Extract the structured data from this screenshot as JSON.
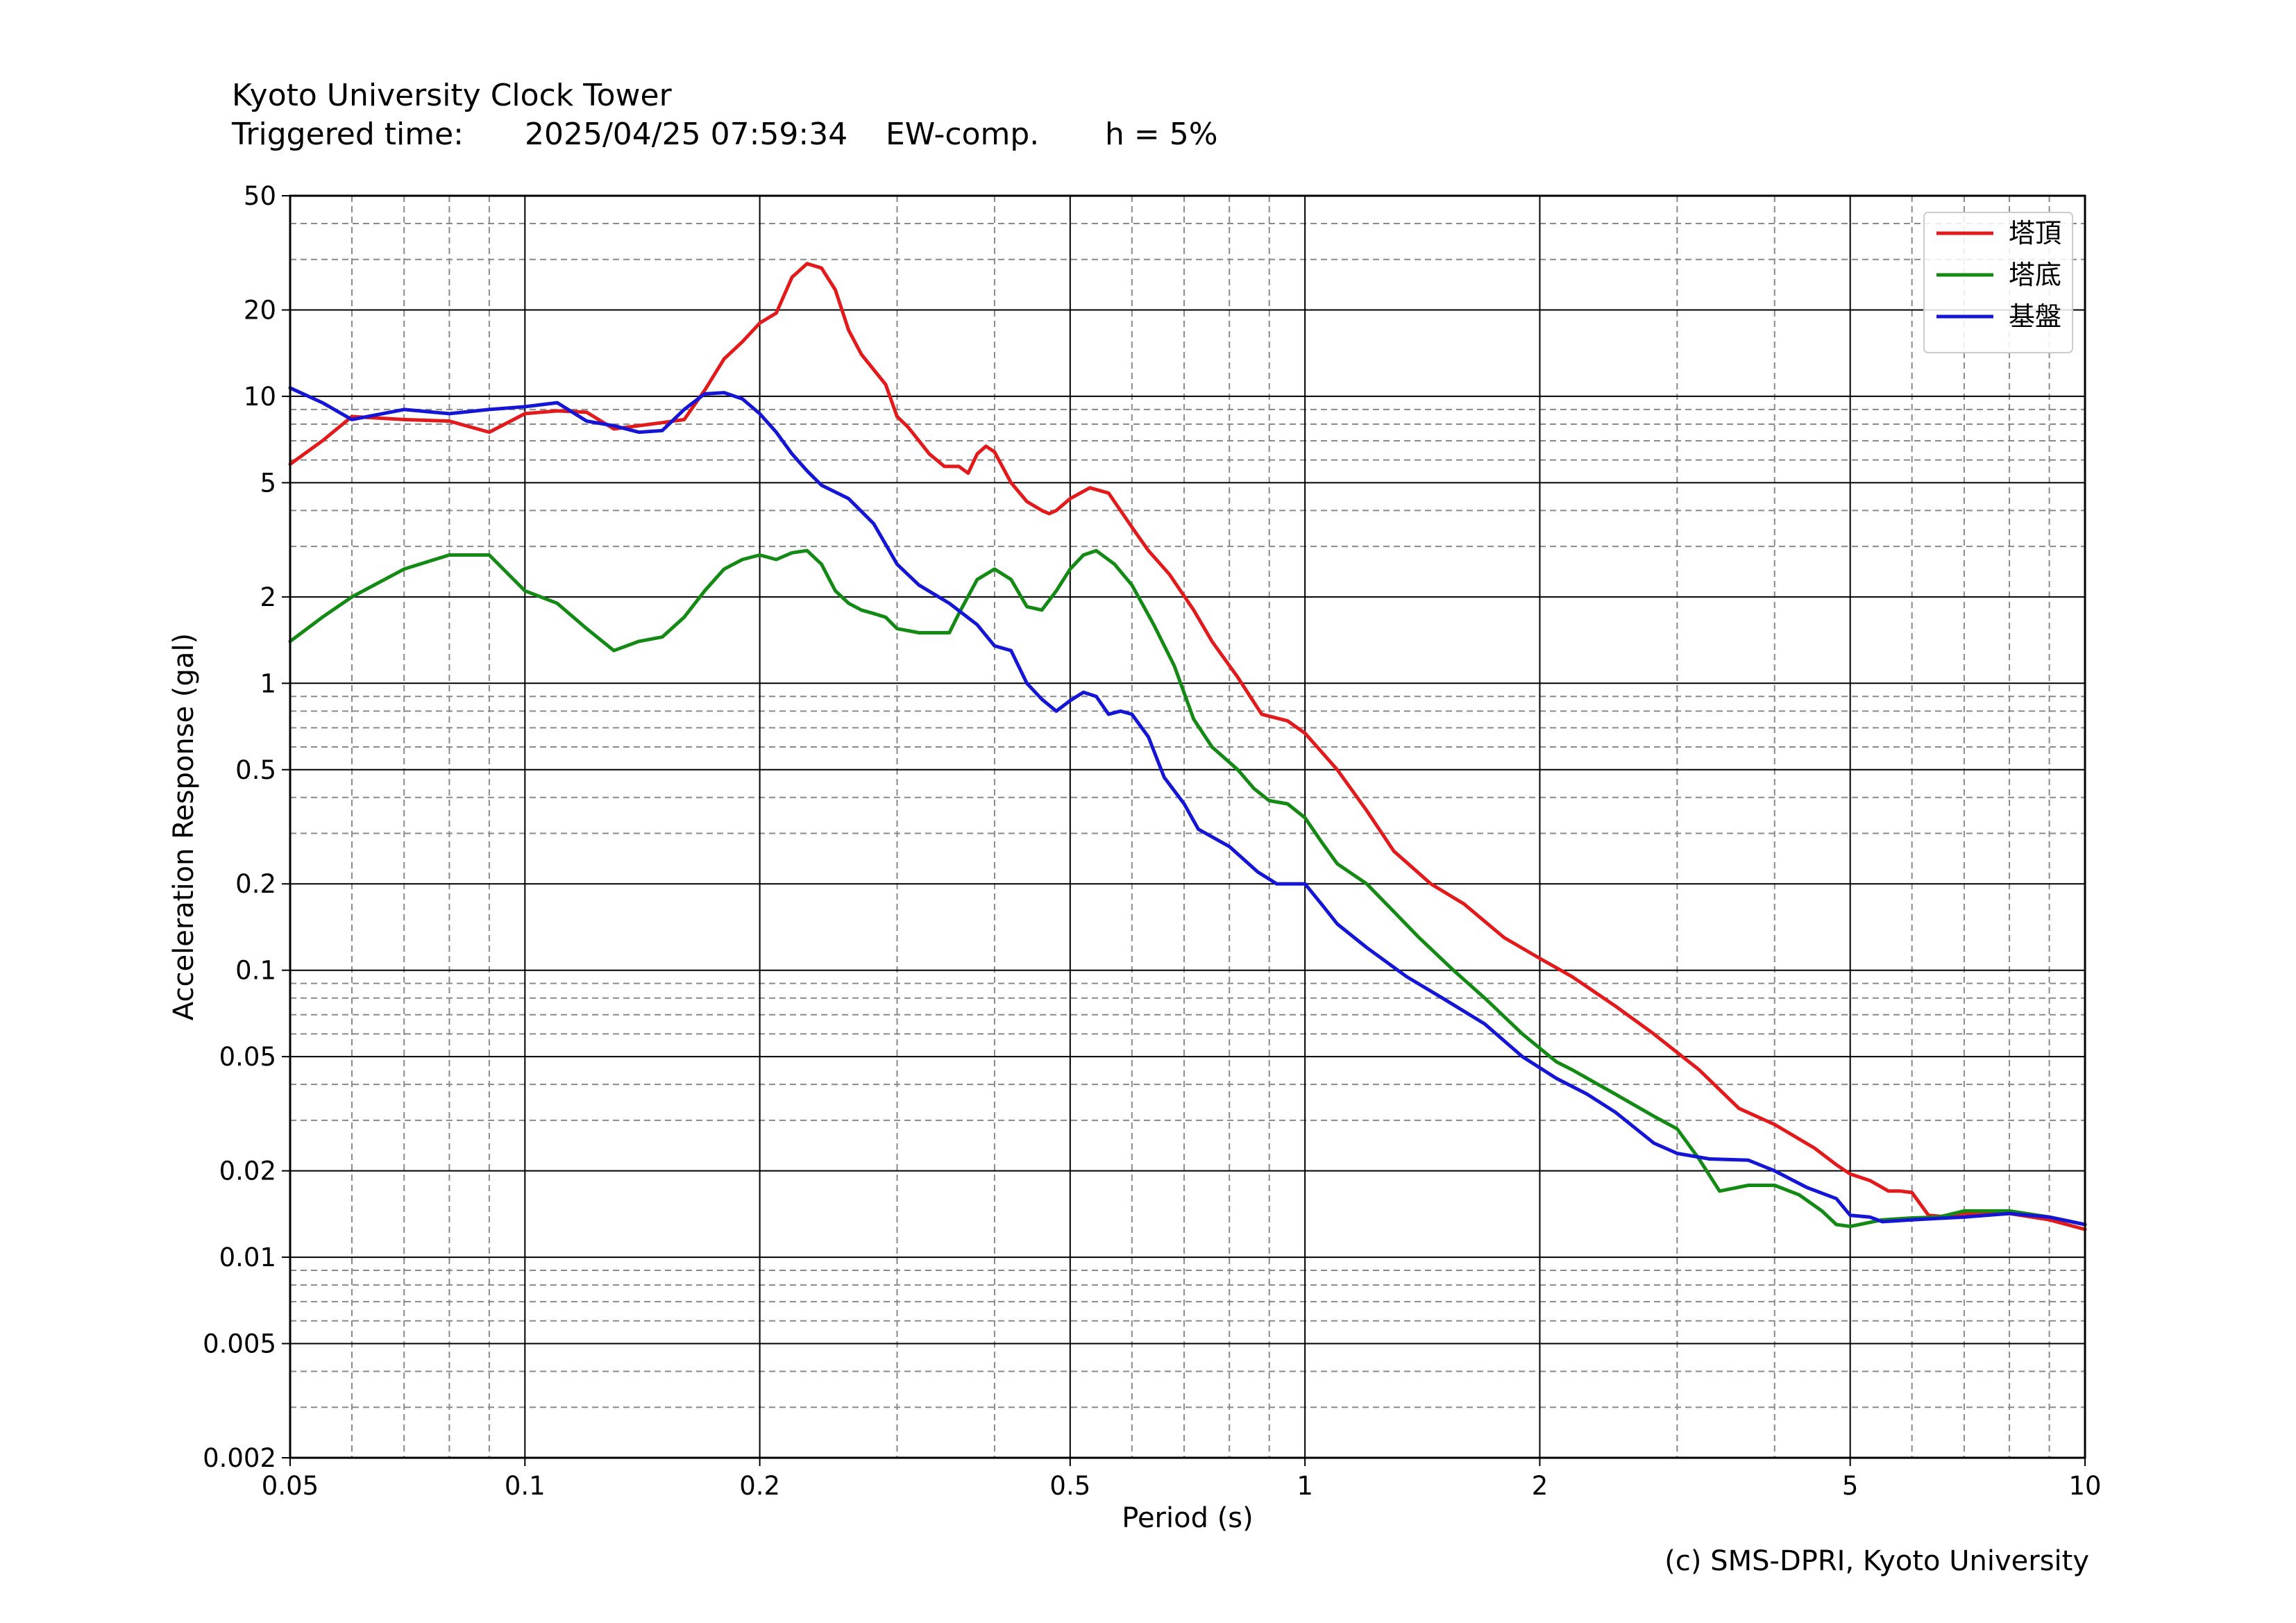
{
  "header": {
    "title": "Kyoto University Clock Tower",
    "triggered_label": "Triggered time:",
    "triggered_value": "2025/04/25 07:59:34",
    "component": "EW-comp.",
    "damping": "h = 5%"
  },
  "credit": "(c) SMS-DPRI, Kyoto University",
  "chart_data": {
    "type": "line",
    "xlabel": "Period (s)",
    "ylabel": "Acceleration Response (gal)",
    "xscale": "log",
    "yscale": "log",
    "xlim": [
      0.05,
      10
    ],
    "ylim": [
      0.002,
      50
    ],
    "grid": true,
    "legend_position": "top-right",
    "x_ticks": [
      {
        "value": 0.05,
        "label": "0.05"
      },
      {
        "value": 0.1,
        "label": "0.1"
      },
      {
        "value": 0.2,
        "label": "0.2"
      },
      {
        "value": 0.5,
        "label": "0.5"
      },
      {
        "value": 1,
        "label": "1"
      },
      {
        "value": 2,
        "label": "2"
      },
      {
        "value": 5,
        "label": "5"
      },
      {
        "value": 10,
        "label": "10"
      }
    ],
    "y_ticks": [
      {
        "value": 0.002,
        "label": "0.002"
      },
      {
        "value": 0.005,
        "label": "0.005"
      },
      {
        "value": 0.01,
        "label": "0.01"
      },
      {
        "value": 0.02,
        "label": "0.02"
      },
      {
        "value": 0.05,
        "label": "0.05"
      },
      {
        "value": 0.1,
        "label": "0.1"
      },
      {
        "value": 0.2,
        "label": "0.2"
      },
      {
        "value": 0.5,
        "label": "0.5"
      },
      {
        "value": 1,
        "label": "1"
      },
      {
        "value": 2,
        "label": "2"
      },
      {
        "value": 5,
        "label": "5"
      },
      {
        "value": 10,
        "label": "10"
      },
      {
        "value": 20,
        "label": "20"
      },
      {
        "value": 50,
        "label": "50"
      }
    ],
    "series": [
      {
        "name": "塔頂",
        "color": "#e31a1c",
        "points": [
          [
            0.05,
            5.8
          ],
          [
            0.055,
            7.0
          ],
          [
            0.06,
            8.5
          ],
          [
            0.07,
            8.3
          ],
          [
            0.08,
            8.2
          ],
          [
            0.09,
            7.5
          ],
          [
            0.1,
            8.7
          ],
          [
            0.11,
            8.9
          ],
          [
            0.12,
            8.8
          ],
          [
            0.13,
            7.7
          ],
          [
            0.15,
            8.1
          ],
          [
            0.16,
            8.3
          ],
          [
            0.17,
            10.5
          ],
          [
            0.18,
            13.5
          ],
          [
            0.19,
            15.5
          ],
          [
            0.2,
            18.0
          ],
          [
            0.21,
            19.5
          ],
          [
            0.22,
            26.0
          ],
          [
            0.23,
            29.0
          ],
          [
            0.24,
            28.0
          ],
          [
            0.25,
            23.5
          ],
          [
            0.26,
            17.0
          ],
          [
            0.27,
            14.0
          ],
          [
            0.29,
            11.0
          ],
          [
            0.3,
            8.5
          ],
          [
            0.31,
            7.8
          ],
          [
            0.33,
            6.3
          ],
          [
            0.345,
            5.7
          ],
          [
            0.36,
            5.7
          ],
          [
            0.37,
            5.4
          ],
          [
            0.38,
            6.3
          ],
          [
            0.39,
            6.7
          ],
          [
            0.4,
            6.4
          ],
          [
            0.42,
            5.0
          ],
          [
            0.44,
            4.3
          ],
          [
            0.46,
            4.0
          ],
          [
            0.47,
            3.9
          ],
          [
            0.48,
            4.0
          ],
          [
            0.5,
            4.4
          ],
          [
            0.53,
            4.8
          ],
          [
            0.56,
            4.6
          ],
          [
            0.6,
            3.5
          ],
          [
            0.63,
            2.9
          ],
          [
            0.67,
            2.4
          ],
          [
            0.72,
            1.8
          ],
          [
            0.76,
            1.4
          ],
          [
            0.82,
            1.05
          ],
          [
            0.88,
            0.78
          ],
          [
            0.95,
            0.74
          ],
          [
            1.0,
            0.67
          ],
          [
            1.1,
            0.5
          ],
          [
            1.2,
            0.36
          ],
          [
            1.3,
            0.26
          ],
          [
            1.45,
            0.2
          ],
          [
            1.6,
            0.17
          ],
          [
            1.8,
            0.13
          ],
          [
            2.0,
            0.11
          ],
          [
            2.2,
            0.095
          ],
          [
            2.5,
            0.075
          ],
          [
            2.8,
            0.06
          ],
          [
            3.2,
            0.045
          ],
          [
            3.6,
            0.033
          ],
          [
            4.0,
            0.029
          ],
          [
            4.5,
            0.024
          ],
          [
            4.8,
            0.021
          ],
          [
            5.0,
            0.0195
          ],
          [
            5.3,
            0.0185
          ],
          [
            5.6,
            0.017
          ],
          [
            5.8,
            0.017
          ],
          [
            6.0,
            0.0168
          ],
          [
            6.3,
            0.014
          ],
          [
            6.7,
            0.0138
          ],
          [
            7.0,
            0.0142
          ],
          [
            8.0,
            0.0142
          ],
          [
            9.0,
            0.0135
          ],
          [
            10.0,
            0.0125
          ]
        ]
      },
      {
        "name": "塔底",
        "color": "#138a13",
        "points": [
          [
            0.05,
            1.4
          ],
          [
            0.055,
            1.7
          ],
          [
            0.06,
            2.0
          ],
          [
            0.07,
            2.5
          ],
          [
            0.08,
            2.8
          ],
          [
            0.09,
            2.8
          ],
          [
            0.1,
            2.1
          ],
          [
            0.11,
            1.9
          ],
          [
            0.12,
            1.55
          ],
          [
            0.13,
            1.3
          ],
          [
            0.14,
            1.4
          ],
          [
            0.15,
            1.45
          ],
          [
            0.16,
            1.7
          ],
          [
            0.17,
            2.1
          ],
          [
            0.18,
            2.5
          ],
          [
            0.19,
            2.7
          ],
          [
            0.2,
            2.8
          ],
          [
            0.21,
            2.7
          ],
          [
            0.22,
            2.85
          ],
          [
            0.23,
            2.9
          ],
          [
            0.24,
            2.6
          ],
          [
            0.25,
            2.1
          ],
          [
            0.26,
            1.9
          ],
          [
            0.27,
            1.8
          ],
          [
            0.28,
            1.75
          ],
          [
            0.29,
            1.7
          ],
          [
            0.3,
            1.55
          ],
          [
            0.32,
            1.5
          ],
          [
            0.35,
            1.5
          ],
          [
            0.36,
            1.75
          ],
          [
            0.38,
            2.3
          ],
          [
            0.4,
            2.5
          ],
          [
            0.42,
            2.3
          ],
          [
            0.44,
            1.85
          ],
          [
            0.46,
            1.8
          ],
          [
            0.48,
            2.1
          ],
          [
            0.5,
            2.5
          ],
          [
            0.52,
            2.8
          ],
          [
            0.54,
            2.9
          ],
          [
            0.57,
            2.6
          ],
          [
            0.6,
            2.2
          ],
          [
            0.64,
            1.6
          ],
          [
            0.68,
            1.15
          ],
          [
            0.72,
            0.75
          ],
          [
            0.76,
            0.6
          ],
          [
            0.82,
            0.5
          ],
          [
            0.86,
            0.43
          ],
          [
            0.9,
            0.39
          ],
          [
            0.95,
            0.38
          ],
          [
            1.0,
            0.34
          ],
          [
            1.05,
            0.28
          ],
          [
            1.1,
            0.235
          ],
          [
            1.2,
            0.2
          ],
          [
            1.3,
            0.16
          ],
          [
            1.4,
            0.13
          ],
          [
            1.55,
            0.1
          ],
          [
            1.7,
            0.08
          ],
          [
            1.9,
            0.06
          ],
          [
            2.1,
            0.048
          ],
          [
            2.2,
            0.045
          ],
          [
            2.5,
            0.037
          ],
          [
            2.8,
            0.031
          ],
          [
            3.0,
            0.028
          ],
          [
            3.2,
            0.022
          ],
          [
            3.4,
            0.017
          ],
          [
            3.7,
            0.0178
          ],
          [
            4.0,
            0.0178
          ],
          [
            4.3,
            0.0165
          ],
          [
            4.6,
            0.0145
          ],
          [
            4.8,
            0.013
          ],
          [
            5.0,
            0.0128
          ],
          [
            5.5,
            0.0135
          ],
          [
            6.0,
            0.0137
          ],
          [
            6.5,
            0.0138
          ],
          [
            7.0,
            0.0145
          ],
          [
            8.0,
            0.0145
          ],
          [
            9.0,
            0.0138
          ],
          [
            10.0,
            0.013
          ]
        ]
      },
      {
        "name": "基盤",
        "color": "#1515d6",
        "points": [
          [
            0.05,
            10.7
          ],
          [
            0.055,
            9.5
          ],
          [
            0.06,
            8.3
          ],
          [
            0.07,
            9.0
          ],
          [
            0.08,
            8.7
          ],
          [
            0.09,
            9.0
          ],
          [
            0.1,
            9.2
          ],
          [
            0.11,
            9.5
          ],
          [
            0.12,
            8.2
          ],
          [
            0.13,
            7.9
          ],
          [
            0.14,
            7.5
          ],
          [
            0.15,
            7.6
          ],
          [
            0.16,
            9.0
          ],
          [
            0.17,
            10.2
          ],
          [
            0.18,
            10.3
          ],
          [
            0.19,
            9.8
          ],
          [
            0.2,
            8.7
          ],
          [
            0.21,
            7.5
          ],
          [
            0.22,
            6.3
          ],
          [
            0.23,
            5.5
          ],
          [
            0.24,
            4.9
          ],
          [
            0.26,
            4.4
          ],
          [
            0.28,
            3.6
          ],
          [
            0.3,
            2.6
          ],
          [
            0.32,
            2.2
          ],
          [
            0.35,
            1.9
          ],
          [
            0.38,
            1.6
          ],
          [
            0.4,
            1.35
          ],
          [
            0.42,
            1.3
          ],
          [
            0.44,
            1.0
          ],
          [
            0.46,
            0.88
          ],
          [
            0.48,
            0.8
          ],
          [
            0.5,
            0.87
          ],
          [
            0.52,
            0.93
          ],
          [
            0.54,
            0.9
          ],
          [
            0.56,
            0.78
          ],
          [
            0.58,
            0.8
          ],
          [
            0.6,
            0.78
          ],
          [
            0.63,
            0.65
          ],
          [
            0.66,
            0.47
          ],
          [
            0.7,
            0.38
          ],
          [
            0.73,
            0.31
          ],
          [
            0.8,
            0.27
          ],
          [
            0.87,
            0.22
          ],
          [
            0.92,
            0.2
          ],
          [
            0.96,
            0.2
          ],
          [
            1.0,
            0.2
          ],
          [
            1.05,
            0.17
          ],
          [
            1.1,
            0.145
          ],
          [
            1.2,
            0.12
          ],
          [
            1.35,
            0.095
          ],
          [
            1.5,
            0.08
          ],
          [
            1.7,
            0.065
          ],
          [
            1.9,
            0.05
          ],
          [
            2.1,
            0.042
          ],
          [
            2.3,
            0.037
          ],
          [
            2.5,
            0.032
          ],
          [
            2.8,
            0.025
          ],
          [
            3.0,
            0.023
          ],
          [
            3.3,
            0.022
          ],
          [
            3.7,
            0.0218
          ],
          [
            4.0,
            0.02
          ],
          [
            4.4,
            0.0175
          ],
          [
            4.8,
            0.016
          ],
          [
            5.0,
            0.014
          ],
          [
            5.3,
            0.0138
          ],
          [
            5.5,
            0.0133
          ],
          [
            6.0,
            0.0135
          ],
          [
            7.0,
            0.0138
          ],
          [
            8.0,
            0.0142
          ],
          [
            9.0,
            0.0138
          ],
          [
            10.0,
            0.013
          ]
        ]
      }
    ]
  }
}
